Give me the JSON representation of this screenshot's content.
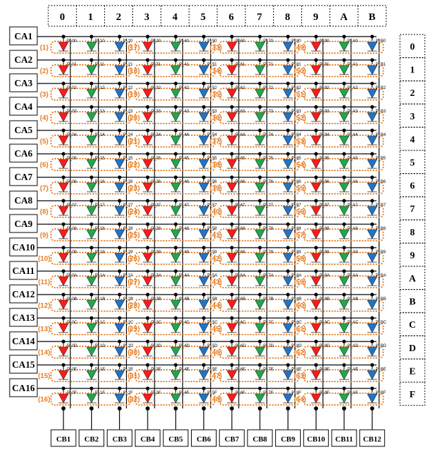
{
  "colors": {
    "red": "#ff1a1a",
    "green": "#1ea84a",
    "blue": "#1f74c8",
    "orange": "#e87d22",
    "wire": "#000000"
  },
  "top_headers": [
    "0",
    "1",
    "2",
    "3",
    "4",
    "5",
    "6",
    "7",
    "8",
    "9",
    "A",
    "B"
  ],
  "row_anodes": [
    "CA1",
    "CA2",
    "CA3",
    "CA4",
    "CA5",
    "CA6",
    "CA7",
    "CA8",
    "CA9",
    "CA10",
    "CA11",
    "CA12",
    "CA13",
    "CA14",
    "CA15",
    "CA16"
  ],
  "right_headers": [
    "0",
    "1",
    "2",
    "3",
    "4",
    "5",
    "6",
    "7",
    "8",
    "9",
    "A",
    "B",
    "C",
    "D",
    "E",
    "F"
  ],
  "col_cathodes": [
    "CB1",
    "CB2",
    "CB3",
    "CB4",
    "CB5",
    "CB6",
    "CB7",
    "CB8",
    "CB9",
    "CB10",
    "CB11",
    "CB12"
  ],
  "led_colors_by_column": [
    "red",
    "green",
    "blue",
    "red",
    "green",
    "blue",
    "red",
    "green",
    "blue",
    "red",
    "green",
    "blue"
  ],
  "led_labels": [
    [
      "P_00",
      "P_10",
      "P_20",
      "P_30",
      "P_40",
      "P_50",
      "P_60",
      "P_70",
      "P_80",
      "P_90",
      "P_A0",
      "P_B0"
    ],
    [
      "P_01",
      "P_11",
      "P_21",
      "P_31",
      "P_41",
      "P_51",
      "P_61",
      "P_71",
      "P_81",
      "P_91",
      "P_A1",
      "P_B1"
    ],
    [
      "P_02",
      "P_12",
      "P_22",
      "P_32",
      "P_42",
      "P_52",
      "P_62",
      "P_72",
      "P_82",
      "P_92",
      "P_A2",
      "P_B2"
    ],
    [
      "P_03",
      "P_13",
      "P_23",
      "P_33",
      "P_43",
      "P_53",
      "P_63",
      "P_73",
      "P_83",
      "P_93",
      "P_A3",
      "P_B3"
    ],
    [
      "P_04",
      "P_14",
      "P_24",
      "P_34",
      "P_44",
      "P_54",
      "P_64",
      "P_74",
      "P_84",
      "P_94",
      "P_A4",
      "P_B4"
    ],
    [
      "P_05",
      "P_15",
      "P_25",
      "P_35",
      "P_45",
      "P_55",
      "P_65",
      "P_75",
      "P_85",
      "P_95",
      "P_A5",
      "P_B5"
    ],
    [
      "P_06",
      "P_16",
      "P_26",
      "P_36",
      "P_46",
      "P_56",
      "P_66",
      "P_76",
      "P_86",
      "P_96",
      "P_A6",
      "P_B6"
    ],
    [
      "P_07",
      "P_17",
      "P_27",
      "P_37",
      "P_47",
      "P_57",
      "P_67",
      "P_77",
      "P_87",
      "P_97",
      "P_A7",
      "P_B7"
    ],
    [
      "P_08",
      "P_18",
      "P_28",
      "P_38",
      "P_48",
      "P_58",
      "P_68",
      "P_78",
      "P_88",
      "P_98",
      "P_A8",
      "P_B8"
    ],
    [
      "P_09",
      "P_19",
      "P_29",
      "P_39",
      "P_49",
      "P_59",
      "P_69",
      "P_79",
      "P_89",
      "P_99",
      "P_A9",
      "P_B9"
    ],
    [
      "P_0A",
      "P_1A",
      "P_2A",
      "P_3A",
      "P_4A",
      "P_5A",
      "P_6A",
      "P_7A",
      "P_8A",
      "P_9A",
      "P_AA",
      "P_BA"
    ],
    [
      "P_0B",
      "P_1B",
      "P_2B",
      "P_3B",
      "P_4B",
      "P_5B",
      "P_6B",
      "P_7B",
      "P_8B",
      "P_9B",
      "P_AB",
      "P_BB"
    ],
    [
      "P_0C",
      "P_1C",
      "P_2C",
      "P_3C",
      "P_4C",
      "P_5C",
      "P_6C",
      "P_7C",
      "P_8C",
      "P_9C",
      "P_AC",
      "P_BC"
    ],
    [
      "P_0D",
      "P_1D",
      "P_2D",
      "P_3D",
      "P_4D",
      "P_5D",
      "P_6D",
      "P_7D",
      "P_8D",
      "P_9D",
      "P_AD",
      "P_BD"
    ],
    [
      "P_0E",
      "P_1E",
      "P_2E",
      "P_3E",
      "P_4E",
      "P_5E",
      "P_6E",
      "P_7E",
      "P_8E",
      "P_9E",
      "P_AE",
      "P_BE"
    ],
    [
      "P_0F",
      "P_1F",
      "P_2F",
      "P_3F",
      "P_4F",
      "P_5F",
      "P_6F",
      "P_7F",
      "P_8F",
      "P_9F",
      "P_AF",
      "P_BF"
    ]
  ],
  "pixel_groups": [
    {
      "row": 0,
      "labels": [
        "(1)",
        "(17)",
        "(33)",
        "(49)"
      ]
    },
    {
      "row": 1,
      "labels": [
        "(2)",
        "(18)",
        "(34)",
        "(50)"
      ]
    },
    {
      "row": 2,
      "labels": [
        "(3)",
        "(19)",
        "(35)",
        "(51)"
      ]
    },
    {
      "row": 3,
      "labels": [
        "(4)",
        "(20)",
        "(36)",
        "(52)"
      ]
    },
    {
      "row": 4,
      "labels": [
        "(5)",
        "(21)",
        "(37)",
        "(53)"
      ]
    },
    {
      "row": 5,
      "labels": [
        "(6)",
        "(22)",
        "(38)",
        "(54)"
      ]
    },
    {
      "row": 6,
      "labels": [
        "(7)",
        "(23)",
        "(39)",
        "(55)"
      ]
    },
    {
      "row": 7,
      "labels": [
        "(8)",
        "(24)",
        "(40)",
        "(56)"
      ]
    },
    {
      "row": 8,
      "labels": [
        "(9)",
        "(25)",
        "(41)",
        "(57)"
      ]
    },
    {
      "row": 9,
      "labels": [
        "(10)",
        "(26)",
        "(42)",
        "(58)"
      ]
    },
    {
      "row": 10,
      "labels": [
        "(11)",
        "(27)",
        "(43)",
        "(59)"
      ]
    },
    {
      "row": 11,
      "labels": [
        "(12)",
        "(28)",
        "(44)",
        "(60)"
      ]
    },
    {
      "row": 12,
      "labels": [
        "(13)",
        "(29)",
        "(45)",
        "(61)"
      ]
    },
    {
      "row": 13,
      "labels": [
        "(14)",
        "(30)",
        "(46)",
        "(62)"
      ]
    },
    {
      "row": 14,
      "labels": [
        "(15)",
        "(31)",
        "(47)",
        "(63)"
      ]
    },
    {
      "row": 15,
      "labels": [
        "(16)",
        "(32)",
        "(48)",
        "(64)"
      ]
    }
  ]
}
